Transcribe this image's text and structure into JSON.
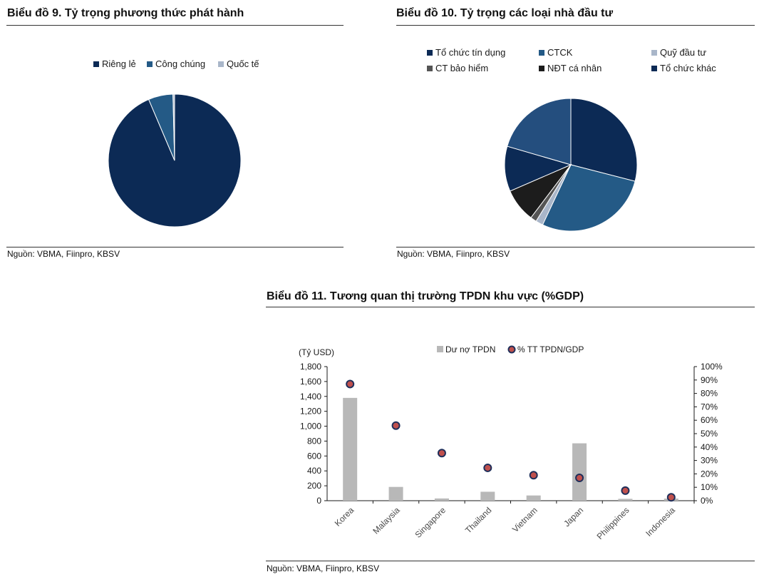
{
  "chart_data": [
    {
      "type": "pie",
      "title": "Biểu đồ 9.  Tỷ trọng phương thức phát hành",
      "source": "Nguồn: VBMA, Fiinpro, KBSV",
      "legend_position": "top",
      "series": [
        {
          "name": "Riêng lẻ",
          "value": 93.6,
          "color": "#0c2a55"
        },
        {
          "name": "Công chúng",
          "value": 6.0,
          "color": "#245a86"
        },
        {
          "name": "Quốc tế",
          "value": 0.4,
          "color": "#a9b6c9"
        }
      ]
    },
    {
      "type": "pie",
      "title": "Biểu đồ 10. Tỷ trọng các loại nhà đầu tư",
      "source": "Nguồn: VBMA, Fiinpro, KBSV",
      "legend_position": "top",
      "series": [
        {
          "name": "Tổ chức tín dụng",
          "value": 29.0,
          "color": "#0c2a55"
        },
        {
          "name": "CTCK",
          "value": 28.0,
          "color": "#245a86"
        },
        {
          "name": "Quỹ đầu tư",
          "value": 1.8,
          "color": "#a9b6c9"
        },
        {
          "name": "CT bảo hiểm",
          "value": 1.5,
          "color": "#555555"
        },
        {
          "name": "NĐT cá nhân",
          "value": 8.2,
          "color": "#1c1c1c"
        },
        {
          "name": "Tổ chức khác",
          "value": 31.5,
          "color": "#0c2a55",
          "slices": [
            11.0,
            20.5
          ],
          "slice_colors": [
            "#0c2a55",
            "#244e7e"
          ]
        }
      ]
    },
    {
      "type": "bar",
      "title": "Biểu đồ 11. Tương quan thị trường TPDN khu vực (%GDP)",
      "source": "Nguồn:  VBMA, Fiinpro, KBSV",
      "ylabel": "(Tỷ USD)",
      "categories": [
        "Korea",
        "Malaysia",
        "Singapore",
        "Thailand",
        "Vietnam",
        "Japan",
        "Philippines",
        "Indonesia"
      ],
      "ylim": [
        0,
        1800
      ],
      "y_ticks": [
        "0",
        "200",
        "400",
        "600",
        "800",
        "1,000",
        "1,200",
        "1,400",
        "1,600",
        "1,800"
      ],
      "y2lim": [
        0,
        100
      ],
      "y2_ticks": [
        "0%",
        "10%",
        "20%",
        "30%",
        "40%",
        "50%",
        "60%",
        "70%",
        "80%",
        "90%",
        "100%"
      ],
      "legend_position": "top",
      "grid": false,
      "series": [
        {
          "name": "Dư nợ TPDN",
          "type": "bar",
          "axis": "left",
          "color": "#b8b8b8",
          "values": [
            1380,
            185,
            30,
            120,
            70,
            770,
            25,
            28
          ]
        },
        {
          "name": "% TT TPDN/GDP",
          "type": "scatter",
          "axis": "right",
          "color": "#c0504d",
          "edge": "#1f2f5a",
          "values": [
            87,
            56,
            35.5,
            24.5,
            19,
            17,
            7.5,
            2.5
          ]
        }
      ]
    }
  ]
}
